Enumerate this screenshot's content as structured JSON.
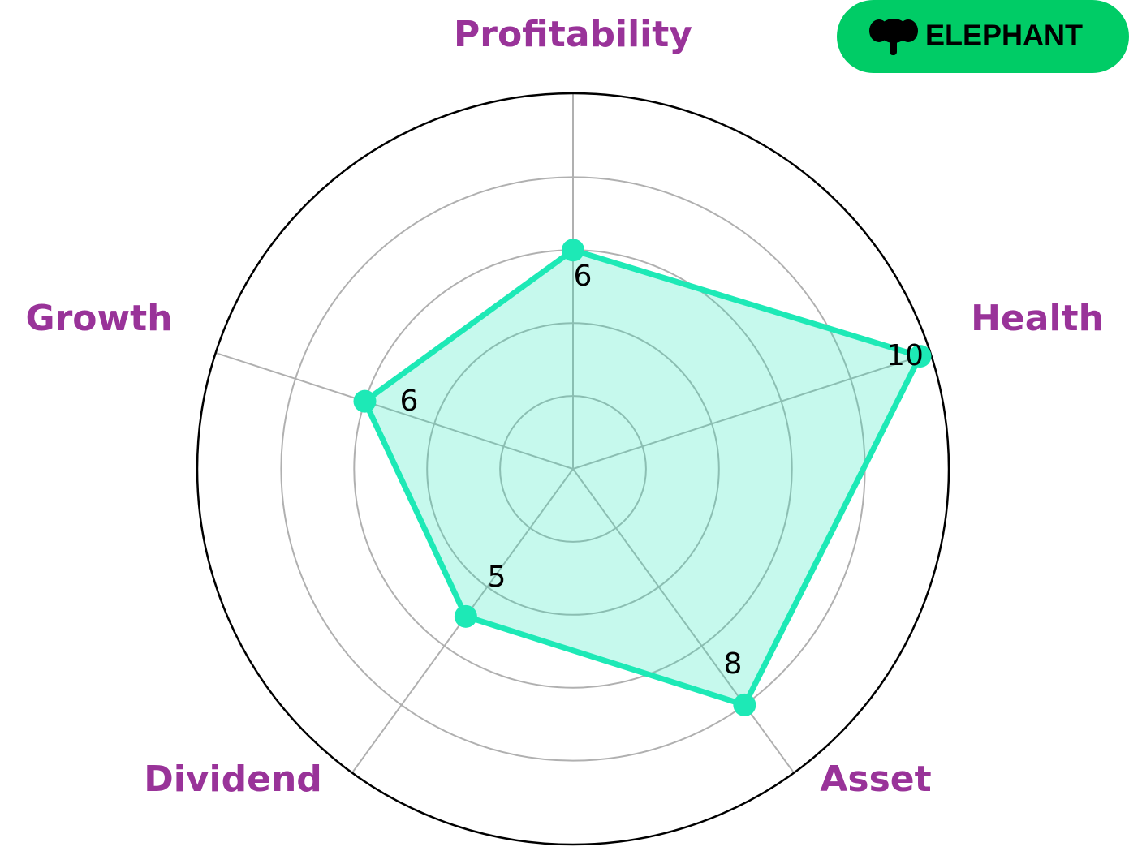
{
  "chart_data": {
    "type": "radar",
    "categories": [
      "Profitability",
      "Health",
      "Asset",
      "Dividend",
      "Growth"
    ],
    "values": [
      6,
      10,
      8,
      5,
      6
    ],
    "color": "#1de9b6",
    "label_color": "#993399",
    "ylim": [
      0,
      10.3
    ],
    "yticks": [
      2,
      4,
      6,
      8
    ],
    "grid": true
  },
  "logo": "ELEPHANT"
}
